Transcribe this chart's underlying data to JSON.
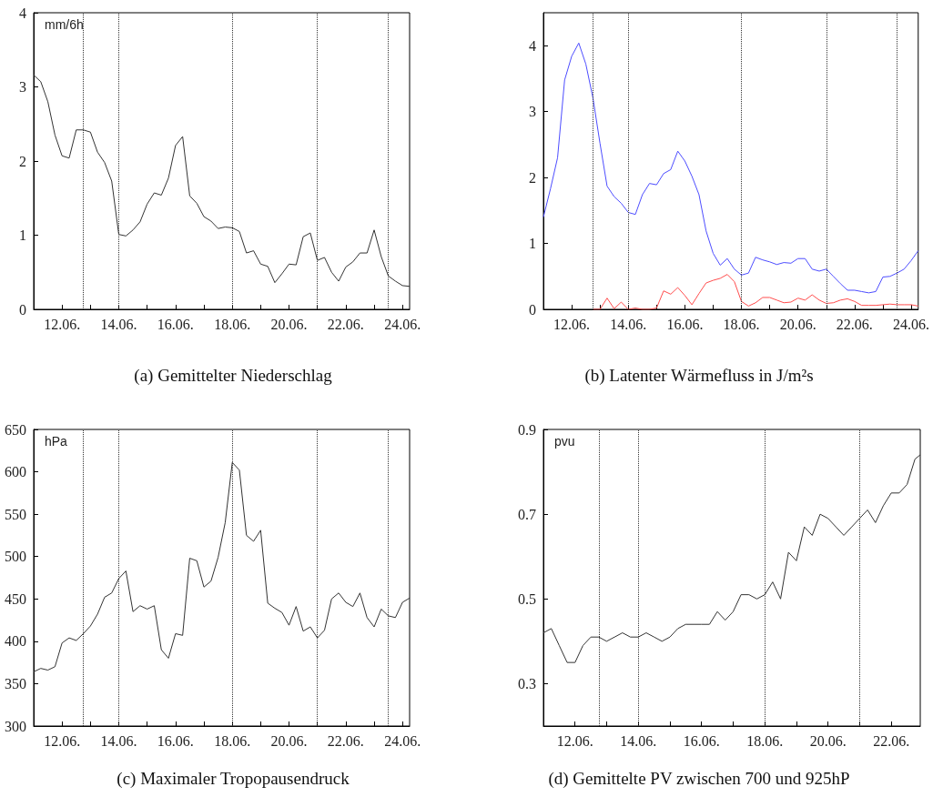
{
  "chart_data": [
    {
      "type": "line",
      "title": "(a) Gemittelter Niederschlag",
      "ylabel": "mm/6h",
      "x": [
        "--06-11T00:00",
        "--06-11T06:00",
        "--06-11T12:00",
        "--06-11T18:00",
        "--06-12T00:00",
        "--06-12T06:00",
        "--06-12T12:00",
        "--06-12T18:00",
        "--06-13T00:00",
        "--06-13T06:00",
        "--06-13T12:00",
        "--06-13T18:00",
        "--06-14T00:00",
        "--06-14T06:00",
        "--06-14T12:00",
        "--06-14T18:00",
        "--06-15T00:00",
        "--06-15T06:00",
        "--06-15T12:00",
        "--06-15T18:00",
        "--06-16T00:00",
        "--06-16T06:00",
        "--06-16T12:00",
        "--06-16T18:00",
        "--06-17T00:00",
        "--06-17T06:00",
        "--06-17T12:00",
        "--06-17T18:00",
        "--06-18T00:00",
        "--06-18T06:00",
        "--06-18T12:00",
        "--06-18T18:00",
        "--06-19T00:00",
        "--06-19T06:00",
        "--06-19T12:00",
        "--06-19T18:00",
        "--06-20T00:00",
        "--06-20T06:00",
        "--06-20T12:00",
        "--06-20T18:00",
        "--06-21T00:00",
        "--06-21T06:00",
        "--06-21T12:00",
        "--06-21T18:00",
        "--06-22T00:00",
        "--06-22T06:00",
        "--06-22T12:00",
        "--06-22T18:00",
        "--06-23T00:00",
        "--06-23T06:00",
        "--06-23T12:00",
        "--06-23T18:00",
        "--06-24T00:00",
        "--06-24T06:00"
      ],
      "series": [
        {
          "color": "#333333",
          "values": [
            3.16,
            3.07,
            2.8,
            2.35,
            2.07,
            2.04,
            2.42,
            2.42,
            2.39,
            2.12,
            1.98,
            1.73,
            1.01,
            0.99,
            1.07,
            1.18,
            1.42,
            1.57,
            1.54,
            1.77,
            2.21,
            2.33,
            1.53,
            1.43,
            1.25,
            1.19,
            1.09,
            1.11,
            1.1,
            1.05,
            0.76,
            0.79,
            0.61,
            0.58,
            0.36,
            0.48,
            0.61,
            0.6,
            0.98,
            1.03,
            0.66,
            0.7,
            0.5,
            0.38,
            0.57,
            0.64,
            0.76,
            0.76,
            1.07,
            0.71,
            0.45,
            0.38,
            0.32,
            0.31
          ]
        }
      ],
      "xlim": [
        "--06-11T00:00",
        "--06-24T06:00"
      ],
      "xticks": [
        {
          "value": "--06-12",
          "label": "12.06."
        },
        {
          "value": "--06-13",
          "label": null
        },
        {
          "value": "--06-14",
          "label": "14.06."
        },
        {
          "value": "--06-15",
          "label": null
        },
        {
          "value": "--06-16",
          "label": "16.06."
        },
        {
          "value": "--06-17",
          "label": null
        },
        {
          "value": "--06-18",
          "label": "18.06."
        },
        {
          "value": "--06-19",
          "label": null
        },
        {
          "value": "--06-20",
          "label": "20.06."
        },
        {
          "value": "--06-21",
          "label": null
        },
        {
          "value": "--06-22",
          "label": "22.06."
        },
        {
          "value": "--06-23",
          "label": null
        },
        {
          "value": "--06-24",
          "label": "24.06."
        }
      ],
      "ylim": [
        0,
        4
      ],
      "yticks": [
        0,
        1,
        2,
        3,
        4
      ],
      "ref_lines": [
        {
          "axis": "x",
          "value": "--06-12T18:00",
          "color": "#333333",
          "line_style": "dotted"
        },
        {
          "axis": "x",
          "value": "--06-14T00:00",
          "color": "#333333",
          "line_style": "dotted"
        },
        {
          "axis": "x",
          "value": "--06-18T00:00",
          "color": "#333333",
          "line_style": "dotted"
        },
        {
          "axis": "x",
          "value": "--06-21T00:00",
          "color": "#333333",
          "line_style": "dotted"
        },
        {
          "axis": "x",
          "value": "--06-23T12:00",
          "color": "#333333",
          "line_style": "dotted"
        }
      ]
    },
    {
      "type": "line",
      "title": "(b) Latenter Wärmefluss in J/m²s",
      "x": [
        "--06-11T00:00",
        "--06-11T06:00",
        "--06-11T12:00",
        "--06-11T18:00",
        "--06-12T00:00",
        "--06-12T06:00",
        "--06-12T12:00",
        "--06-12T18:00",
        "--06-13T00:00",
        "--06-13T06:00",
        "--06-13T12:00",
        "--06-13T18:00",
        "--06-14T00:00",
        "--06-14T06:00",
        "--06-14T12:00",
        "--06-14T18:00",
        "--06-15T00:00",
        "--06-15T06:00",
        "--06-15T12:00",
        "--06-15T18:00",
        "--06-16T00:00",
        "--06-16T06:00",
        "--06-16T12:00",
        "--06-16T18:00",
        "--06-17T00:00",
        "--06-17T06:00",
        "--06-17T12:00",
        "--06-17T18:00",
        "--06-18T00:00",
        "--06-18T06:00",
        "--06-18T12:00",
        "--06-18T18:00",
        "--06-19T00:00",
        "--06-19T06:00",
        "--06-19T12:00",
        "--06-19T18:00",
        "--06-20T00:00",
        "--06-20T06:00",
        "--06-20T12:00",
        "--06-20T18:00",
        "--06-21T00:00",
        "--06-21T06:00",
        "--06-21T12:00",
        "--06-21T18:00",
        "--06-22T00:00",
        "--06-22T06:00",
        "--06-22T12:00",
        "--06-22T18:00",
        "--06-23T00:00",
        "--06-23T06:00",
        "--06-23T12:00",
        "--06-23T18:00",
        "--06-24T00:00",
        "--06-24T06:00"
      ],
      "series": [
        {
          "color": "#4d4dff",
          "values": [
            1.4,
            1.83,
            2.3,
            3.48,
            3.84,
            4.04,
            3.72,
            3.21,
            2.52,
            1.87,
            1.71,
            1.61,
            1.47,
            1.44,
            1.74,
            1.91,
            1.89,
            2.06,
            2.12,
            2.4,
            2.25,
            2.02,
            1.74,
            1.19,
            0.85,
            0.67,
            0.77,
            0.61,
            0.52,
            0.55,
            0.79,
            0.75,
            0.72,
            0.68,
            0.71,
            0.7,
            0.77,
            0.77,
            0.61,
            0.58,
            0.61,
            0.5,
            0.39,
            0.29,
            0.29,
            0.27,
            0.25,
            0.27,
            0.49,
            0.5,
            0.55,
            0.61,
            0.74,
            0.89
          ]
        },
        {
          "color": "#ff4d4d",
          "values": [
            null,
            null,
            null,
            null,
            null,
            null,
            null,
            0,
            0,
            0.17,
            0.01,
            0.11,
            0,
            0.02,
            0,
            0,
            0.02,
            0.28,
            0.23,
            0.33,
            0.21,
            0.07,
            0.24,
            0.4,
            0.44,
            0.47,
            0.53,
            0.42,
            0.12,
            0.05,
            0.1,
            0.18,
            0.18,
            0.14,
            0.1,
            0.11,
            0.17,
            0.14,
            0.22,
            0.14,
            0.09,
            0.1,
            0.14,
            0.16,
            0.12,
            0.06,
            0.06,
            0.06,
            0.07,
            0.08,
            0.07,
            0.07,
            0.07,
            0.05
          ]
        }
      ],
      "xlim": [
        "--06-11T00:00",
        "--06-24T06:00"
      ],
      "xticks": [
        {
          "value": "--06-12",
          "label": "12.06."
        },
        {
          "value": "--06-13",
          "label": null
        },
        {
          "value": "--06-14",
          "label": "14.06."
        },
        {
          "value": "--06-15",
          "label": null
        },
        {
          "value": "--06-16",
          "label": "16.06."
        },
        {
          "value": "--06-17",
          "label": null
        },
        {
          "value": "--06-18",
          "label": "18.06."
        },
        {
          "value": "--06-19",
          "label": null
        },
        {
          "value": "--06-20",
          "label": "20.06."
        },
        {
          "value": "--06-21",
          "label": null
        },
        {
          "value": "--06-22",
          "label": "22.06."
        },
        {
          "value": "--06-23",
          "label": null
        },
        {
          "value": "--06-24",
          "label": "24.06."
        }
      ],
      "ylim": [
        0,
        4.5
      ],
      "yticks": [
        0,
        1,
        2,
        3,
        4
      ],
      "ref_lines": [
        {
          "axis": "x",
          "value": "--06-12T18:00",
          "color": "#333333",
          "line_style": "dotted"
        },
        {
          "axis": "x",
          "value": "--06-14T00:00",
          "color": "#333333",
          "line_style": "dotted"
        },
        {
          "axis": "x",
          "value": "--06-18T00:00",
          "color": "#333333",
          "line_style": "dotted"
        },
        {
          "axis": "x",
          "value": "--06-21T00:00",
          "color": "#333333",
          "line_style": "dotted"
        },
        {
          "axis": "x",
          "value": "--06-23T12:00",
          "color": "#333333",
          "line_style": "dotted"
        }
      ]
    },
    {
      "type": "line",
      "title": "(c) Maximaler Tropopausendruck",
      "ylabel": "hPa",
      "x": [
        "--06-11T00:00",
        "--06-11T06:00",
        "--06-11T12:00",
        "--06-11T18:00",
        "--06-12T00:00",
        "--06-12T06:00",
        "--06-12T12:00",
        "--06-12T18:00",
        "--06-13T00:00",
        "--06-13T06:00",
        "--06-13T12:00",
        "--06-13T18:00",
        "--06-14T00:00",
        "--06-14T06:00",
        "--06-14T12:00",
        "--06-14T18:00",
        "--06-15T00:00",
        "--06-15T06:00",
        "--06-15T12:00",
        "--06-15T18:00",
        "--06-16T00:00",
        "--06-16T06:00",
        "--06-16T12:00",
        "--06-16T18:00",
        "--06-17T00:00",
        "--06-17T06:00",
        "--06-17T12:00",
        "--06-17T18:00",
        "--06-18T00:00",
        "--06-18T06:00",
        "--06-18T12:00",
        "--06-18T18:00",
        "--06-19T00:00",
        "--06-19T06:00",
        "--06-19T12:00",
        "--06-19T18:00",
        "--06-20T00:00",
        "--06-20T06:00",
        "--06-20T12:00",
        "--06-20T18:00",
        "--06-21T00:00",
        "--06-21T06:00",
        "--06-21T12:00",
        "--06-21T18:00",
        "--06-22T00:00",
        "--06-22T06:00",
        "--06-22T12:00",
        "--06-22T18:00",
        "--06-23T00:00",
        "--06-23T06:00",
        "--06-23T12:00",
        "--06-23T18:00",
        "--06-24T00:00",
        "--06-24T06:00"
      ],
      "series": [
        {
          "color": "#333333",
          "values": [
            364,
            368,
            366,
            370,
            398,
            404,
            401,
            409,
            418,
            432,
            452,
            457,
            474,
            483,
            435,
            442,
            438,
            442,
            390,
            380,
            409,
            407,
            498,
            495,
            464,
            471,
            499,
            540,
            611,
            602,
            525,
            518,
            531,
            445,
            439,
            434,
            419,
            441,
            412,
            417,
            404,
            413,
            450,
            457,
            446,
            441,
            457,
            428,
            417,
            438,
            430,
            428,
            446,
            451
          ]
        }
      ],
      "xlim": [
        "--06-11T00:00",
        "--06-24T06:00"
      ],
      "xticks": [
        {
          "value": "--06-12",
          "label": "12.06."
        },
        {
          "value": "--06-13",
          "label": null
        },
        {
          "value": "--06-14",
          "label": "14.06."
        },
        {
          "value": "--06-15",
          "label": null
        },
        {
          "value": "--06-16",
          "label": "16.06."
        },
        {
          "value": "--06-17",
          "label": null
        },
        {
          "value": "--06-18",
          "label": "18.06."
        },
        {
          "value": "--06-19",
          "label": null
        },
        {
          "value": "--06-20",
          "label": "20.06."
        },
        {
          "value": "--06-21",
          "label": null
        },
        {
          "value": "--06-22",
          "label": "22.06."
        },
        {
          "value": "--06-23",
          "label": null
        },
        {
          "value": "--06-24",
          "label": "24.06."
        }
      ],
      "ylim": [
        300,
        650
      ],
      "yticks": [
        300,
        350,
        400,
        450,
        500,
        550,
        600,
        650
      ],
      "ref_lines": [
        {
          "axis": "x",
          "value": "--06-12T18:00",
          "color": "#333333",
          "line_style": "dotted"
        },
        {
          "axis": "x",
          "value": "--06-14T00:00",
          "color": "#333333",
          "line_style": "dotted"
        },
        {
          "axis": "x",
          "value": "--06-18T00:00",
          "color": "#333333",
          "line_style": "dotted"
        },
        {
          "axis": "x",
          "value": "--06-21T00:00",
          "color": "#333333",
          "line_style": "dotted"
        },
        {
          "axis": "x",
          "value": "--06-23T12:00",
          "color": "#333333",
          "line_style": "dotted"
        }
      ]
    },
    {
      "type": "line",
      "title": "(d) Gemittelte PV zwischen 700 und 925hP",
      "ylabel": "pvu",
      "x": [
        "--06-11T00:00",
        "--06-11T06:00",
        "--06-11T12:00",
        "--06-11T18:00",
        "--06-12T00:00",
        "--06-12T06:00",
        "--06-12T12:00",
        "--06-12T18:00",
        "--06-13T00:00",
        "--06-13T06:00",
        "--06-13T12:00",
        "--06-13T18:00",
        "--06-14T00:00",
        "--06-14T06:00",
        "--06-14T12:00",
        "--06-14T18:00",
        "--06-15T00:00",
        "--06-15T06:00",
        "--06-15T12:00",
        "--06-15T18:00",
        "--06-16T00:00",
        "--06-16T06:00",
        "--06-16T12:00",
        "--06-16T18:00",
        "--06-17T00:00",
        "--06-17T06:00",
        "--06-17T12:00",
        "--06-17T18:00",
        "--06-18T00:00",
        "--06-18T06:00",
        "--06-18T12:00",
        "--06-18T18:00",
        "--06-19T00:00",
        "--06-19T06:00",
        "--06-19T12:00",
        "--06-19T18:00",
        "--06-20T00:00",
        "--06-20T06:00",
        "--06-20T12:00",
        "--06-20T18:00",
        "--06-21T00:00",
        "--06-21T06:00",
        "--06-21T12:00",
        "--06-21T18:00",
        "--06-22T00:00",
        "--06-22T06:00",
        "--06-22T12:00",
        "--06-22T18:00",
        "--06-22T22:00"
      ],
      "series": [
        {
          "color": "#333333",
          "values": [
            0.42,
            0.43,
            0.39,
            0.35,
            0.35,
            0.39,
            0.41,
            0.41,
            0.4,
            0.41,
            0.42,
            0.41,
            0.41,
            0.42,
            0.41,
            0.4,
            0.41,
            0.43,
            0.44,
            0.44,
            0.44,
            0.44,
            0.47,
            0.45,
            0.47,
            0.51,
            0.51,
            0.5,
            0.51,
            0.54,
            0.5,
            0.61,
            0.59,
            0.67,
            0.65,
            0.7,
            0.69,
            0.67,
            0.65,
            0.67,
            0.69,
            0.71,
            0.68,
            0.72,
            0.75,
            0.75,
            0.77,
            0.83,
            0.84
          ]
        }
      ],
      "xlim": [
        "--06-11T00:00",
        "--06-22T22:00"
      ],
      "xticks": [
        {
          "value": "--06-12",
          "label": "12.06."
        },
        {
          "value": "--06-13",
          "label": null
        },
        {
          "value": "--06-14",
          "label": "14.06."
        },
        {
          "value": "--06-15",
          "label": null
        },
        {
          "value": "--06-16",
          "label": "16.06."
        },
        {
          "value": "--06-17",
          "label": null
        },
        {
          "value": "--06-18",
          "label": "18.06."
        },
        {
          "value": "--06-19",
          "label": null
        },
        {
          "value": "--06-20",
          "label": "20.06."
        },
        {
          "value": "--06-21",
          "label": null
        },
        {
          "value": "--06-22",
          "label": "22.06."
        }
      ],
      "ylim": [
        0.2,
        0.9
      ],
      "yticks": [
        0.3,
        0.5,
        0.7,
        0.9
      ],
      "ref_lines": [
        {
          "axis": "x",
          "value": "--06-12T18:00",
          "color": "#333333",
          "line_style": "dotted"
        },
        {
          "axis": "x",
          "value": "--06-14T00:00",
          "color": "#333333",
          "line_style": "dotted"
        },
        {
          "axis": "x",
          "value": "--06-18T00:00",
          "color": "#333333",
          "line_style": "dotted"
        },
        {
          "axis": "x",
          "value": "--06-21T00:00",
          "color": "#333333",
          "line_style": "dotted"
        }
      ]
    }
  ]
}
